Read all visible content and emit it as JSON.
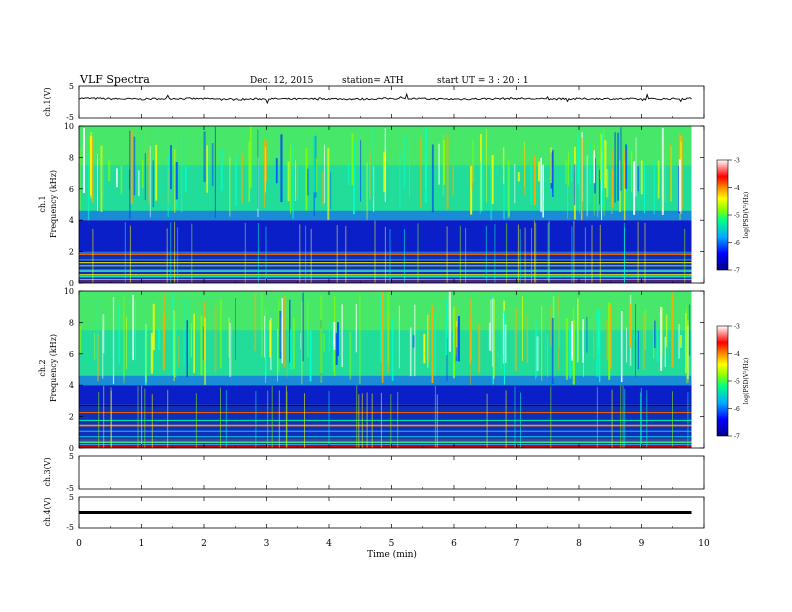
{
  "header": {
    "title": "VLF  Spectra",
    "date": "Dec. 12, 2015",
    "station": "station= ATH",
    "start": "start  UT  =   3  : 20 : 1"
  },
  "chart_data": [
    {
      "type": "line",
      "panel": "ch.1 time series",
      "ylabel": "ch.1(V)",
      "ylim": [
        -5,
        5
      ],
      "yticks": [
        "5",
        "-5"
      ],
      "x": [
        0,
        0.5,
        1,
        1.5,
        2,
        2.5,
        3,
        3.5,
        4,
        4.5,
        5,
        5.5,
        6,
        6.5,
        7,
        7.5,
        8,
        8.5,
        9,
        9.5,
        9.8
      ],
      "values": [
        1.2,
        1.0,
        0.9,
        1.1,
        1.0,
        0.8,
        1.0,
        0.9,
        1.0,
        0.9,
        1.1,
        1.0,
        0.9,
        1.0,
        1.1,
        0.9,
        1.0,
        1.0,
        0.9,
        1.0,
        1.1
      ],
      "line_color": "#000000"
    },
    {
      "type": "heatmap",
      "panel": "ch.1 spectrogram",
      "ylabel_line1": "ch.1",
      "ylabel_line2": "Frequency  (kHz)",
      "ylim": [
        0,
        10
      ],
      "yticks": [
        "0",
        "2",
        "4",
        "6",
        "8",
        "10"
      ],
      "xlim": [
        0,
        10
      ],
      "band_description_kHz": {
        "quiet_band": [
          2,
          4
        ],
        "active_above": 4,
        "lines_below": 2
      },
      "colorbar": {
        "label": "log(PSD(V²/Hz)",
        "ticks": [
          "-3",
          "-4",
          "-5",
          "-6",
          "-7"
        ],
        "range": [
          -7,
          -3
        ],
        "colors": [
          "#000088",
          "#0000ff",
          "#00aaff",
          "#00ff88",
          "#88ff00",
          "#ffff00",
          "#ff8800",
          "#ff0000",
          "#ffffff"
        ]
      }
    },
    {
      "type": "heatmap",
      "panel": "ch.2 spectrogram",
      "ylabel_line1": "ch.2",
      "ylabel_line2": "Frequency  (kHz)",
      "ylim": [
        0,
        10
      ],
      "yticks": [
        "0",
        "2",
        "4",
        "6",
        "8",
        "10"
      ],
      "xlim": [
        0,
        10
      ],
      "band_description_kHz": {
        "quiet_band": [
          2.8,
          4
        ],
        "active_above": 4,
        "lines_below": 2.8
      },
      "colorbar": {
        "label": "log(PSD(V²/Hz)",
        "ticks": [
          "-3",
          "-4",
          "-5",
          "-6",
          "-7"
        ],
        "range": [
          -7,
          -3
        ],
        "colors": [
          "#000088",
          "#0000ff",
          "#00aaff",
          "#00ff88",
          "#88ff00",
          "#ffff00",
          "#ff8800",
          "#ff0000",
          "#ffffff"
        ]
      }
    },
    {
      "type": "line",
      "panel": "ch.3 time series",
      "ylabel": "ch.3(V)",
      "ylim": [
        -5,
        5
      ],
      "yticks": [
        "5",
        "-5"
      ],
      "x": [],
      "values": []
    },
    {
      "type": "line",
      "panel": "ch.4 time series",
      "ylabel": "ch.4(V)",
      "ylim": [
        -5,
        5
      ],
      "yticks": [
        "5",
        "-5"
      ],
      "x": [
        0,
        9.8
      ],
      "values": [
        0,
        0
      ],
      "line_color": "#000000"
    }
  ],
  "xaxis": {
    "label": "Time  (min)",
    "ticks": [
      "0",
      "1",
      "2",
      "3",
      "4",
      "5",
      "6",
      "7",
      "8",
      "9",
      "10"
    ],
    "range": [
      0,
      10
    ],
    "data_end": 9.8
  }
}
